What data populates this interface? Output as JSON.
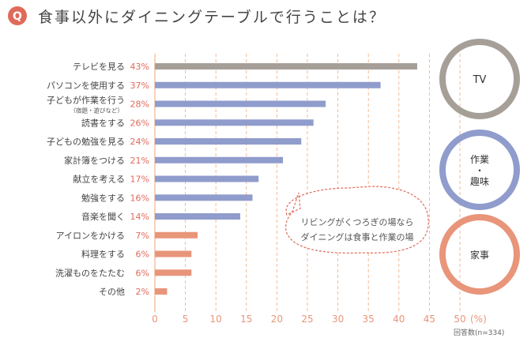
{
  "question": {
    "badge": "Q",
    "title": "食事以外にダイニングテーブルで行うことは？"
  },
  "chart_data": {
    "type": "bar",
    "orientation": "horizontal",
    "unit": "%",
    "x_ticks": [
      "0",
      "5",
      "10",
      "15",
      "20",
      "25",
      "30",
      "35",
      "40",
      "45",
      "50"
    ],
    "x_unit_label": "(%)",
    "xlim": [
      0,
      50
    ],
    "note": "回答数(n=334)",
    "categories": [
      {
        "label": "テレビを見る",
        "sub": "",
        "value": 43,
        "value_label": "43%",
        "group": "tv"
      },
      {
        "label": "パソコンを使用する",
        "sub": "",
        "value": 37,
        "value_label": "37%",
        "group": "hobby"
      },
      {
        "label": "子どもが作業を行う",
        "sub": "（宿題・遊びなど）",
        "value": 28,
        "value_label": "28%",
        "group": "hobby"
      },
      {
        "label": "読書をする",
        "sub": "",
        "value": 26,
        "value_label": "26%",
        "group": "hobby"
      },
      {
        "label": "子どもの勉強を見る",
        "sub": "",
        "value": 24,
        "value_label": "24%",
        "group": "hobby"
      },
      {
        "label": "家計簿をつける",
        "sub": "",
        "value": 21,
        "value_label": "21%",
        "group": "hobby"
      },
      {
        "label": "献立を考える",
        "sub": "",
        "value": 17,
        "value_label": "17%",
        "group": "hobby"
      },
      {
        "label": "勉強をする",
        "sub": "",
        "value": 16,
        "value_label": "16%",
        "group": "hobby"
      },
      {
        "label": "音楽を聞く",
        "sub": "",
        "value": 14,
        "value_label": "14%",
        "group": "hobby"
      },
      {
        "label": "アイロンをかける",
        "sub": "",
        "value": 7,
        "value_label": "7%",
        "group": "house"
      },
      {
        "label": "料理をする",
        "sub": "",
        "value": 6,
        "value_label": "6%",
        "group": "house"
      },
      {
        "label": "洗濯ものをたたむ",
        "sub": "",
        "value": 6,
        "value_label": "6%",
        "group": "house"
      },
      {
        "label": "その他",
        "sub": "",
        "value": 2,
        "value_label": "2%",
        "group": "house"
      }
    ],
    "groups": [
      {
        "key": "tv",
        "label_lines": [
          "TV"
        ],
        "color": "#a69f98"
      },
      {
        "key": "hobby",
        "label_lines": [
          "作業",
          "・",
          "趣味"
        ],
        "color": "#8f9ccc"
      },
      {
        "key": "house",
        "label_lines": [
          "家事"
        ],
        "color": "#e8957a"
      }
    ],
    "annotation": [
      "リビングがくつろぎの場なら",
      "ダイニングは食事と作業の場"
    ]
  },
  "colors": {
    "badge": "#e06a5a",
    "percent_text": "#e06a5a",
    "gridline": "#f0b48a",
    "tick_text": "#e8957a",
    "annotation_border": "#e06a5a"
  }
}
